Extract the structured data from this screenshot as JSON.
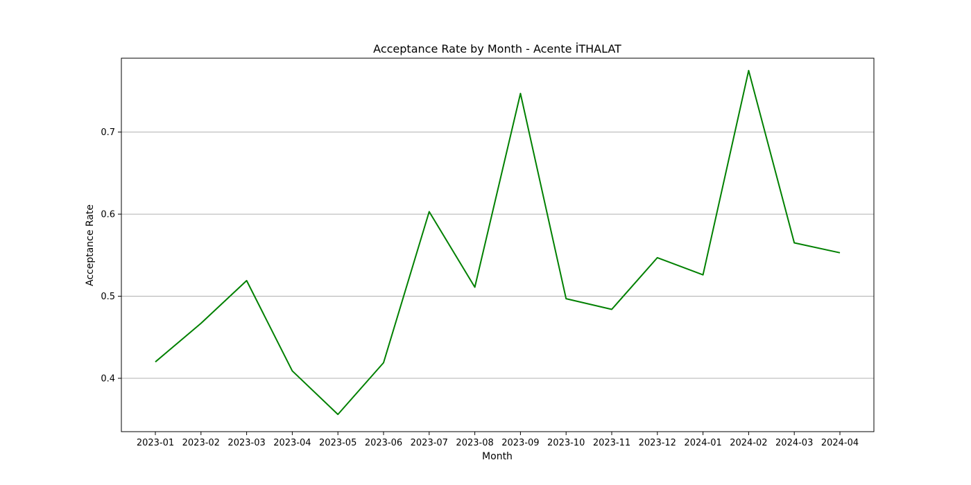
{
  "chart_data": {
    "type": "line",
    "title": "Acceptance Rate by Month - Acente İTHALAT",
    "xlabel": "Month",
    "ylabel": "Acceptance Rate",
    "categories": [
      "2023-01",
      "2023-02",
      "2023-03",
      "2023-04",
      "2023-05",
      "2023-06",
      "2023-07",
      "2023-08",
      "2023-09",
      "2023-10",
      "2023-11",
      "2023-12",
      "2024-01",
      "2024-02",
      "2024-03",
      "2024-04"
    ],
    "series": [
      {
        "color": "#008000",
        "values": [
          0.42,
          0.467,
          0.519,
          0.409,
          0.356,
          0.419,
          0.603,
          0.511,
          0.747,
          0.497,
          0.484,
          0.547,
          0.526,
          0.775,
          0.565,
          0.553
        ]
      }
    ],
    "ylim": [
      0.335,
      0.79
    ],
    "yticks": [
      0.4,
      0.5,
      0.6,
      0.7
    ],
    "ytick_labels": [
      "0.4",
      "0.5",
      "0.6",
      "0.7"
    ],
    "grid": "y-axis only"
  }
}
